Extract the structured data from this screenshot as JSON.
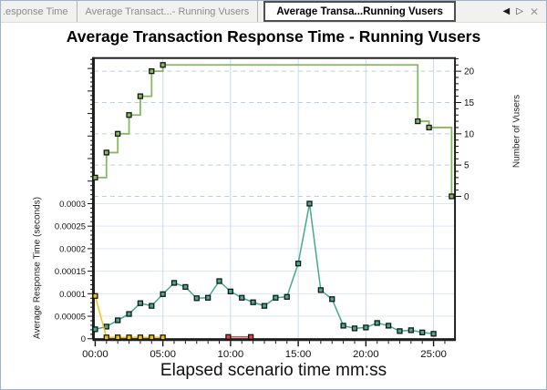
{
  "tab_bar": {
    "tabs": [
      {
        "label": ".esponse Time",
        "active": false
      },
      {
        "label": "Average Transact...- Running Vusers",
        "active": false
      },
      {
        "label": "Average Transa...Running Vusers",
        "active": true
      }
    ],
    "controls": {
      "prev": "◀",
      "next": "▷",
      "close": "✕"
    }
  },
  "chart_data": {
    "type": "line",
    "title": "Average Transaction Response Time - Running Vusers",
    "xlabel": "Elapsed scenario time mm:ss",
    "ylabel_left": "Average Response Time (seconds)",
    "ylabel_right": "Number of Vusers",
    "legend": "none",
    "grid": {
      "vertical": "solid",
      "horizontal_left_axis": "solid",
      "horizontal_right_axis": "dashed"
    },
    "axes": {
      "x": {
        "minor_step_s": 50,
        "max_s": 1595,
        "major_ticks": [
          {
            "t": 0,
            "label": "00:00"
          },
          {
            "t": 300,
            "label": "05:00"
          },
          {
            "t": 600,
            "label": "10:00"
          },
          {
            "t": 900,
            "label": "15:00"
          },
          {
            "t": 1200,
            "label": "20:00"
          },
          {
            "t": 1500,
            "label": "25:00"
          }
        ]
      },
      "y_left": {
        "minor_step": 1e-05,
        "range": [
          0,
          0.00062
        ],
        "ticks": [
          {
            "v": 0,
            "label": "0"
          },
          {
            "v": 5e-05,
            "label": "0.00005"
          },
          {
            "v": 0.0001,
            "label": "0.0001"
          },
          {
            "v": 0.00015,
            "label": "0.00015"
          },
          {
            "v": 0.0002,
            "label": "0.0002"
          },
          {
            "v": 0.00025,
            "label": "0.00025"
          },
          {
            "v": 0.0003,
            "label": "0.0003"
          }
        ]
      },
      "y_right": {
        "minor_step": 1,
        "range": [
          0,
          22
        ],
        "ticks": [
          {
            "v": 0,
            "label": "0"
          },
          {
            "v": 5,
            "label": "5"
          },
          {
            "v": 10,
            "label": "10"
          },
          {
            "v": 15,
            "label": "15"
          },
          {
            "v": 20,
            "label": "20"
          }
        ]
      }
    },
    "series": [
      {
        "name": "average-response-time",
        "axis": "left",
        "type": "line",
        "marker": "square",
        "color": "#45a98e",
        "points": [
          [
            0,
            2.1e-05
          ],
          [
            50,
            2.7e-05
          ],
          [
            100,
            4.1e-05
          ],
          [
            150,
            5.5e-05
          ],
          [
            200,
            7.9e-05
          ],
          [
            250,
            7.3e-05
          ],
          [
            300,
            9.9e-05
          ],
          [
            350,
            0.000124
          ],
          [
            400,
            0.000115
          ],
          [
            450,
            9e-05
          ],
          [
            500,
            9.1e-05
          ],
          [
            550,
            0.000128
          ],
          [
            600,
            0.000105
          ],
          [
            650,
            9.1e-05
          ],
          [
            700,
            8.1e-05
          ],
          [
            750,
            7.3e-05
          ],
          [
            800,
            9.1e-05
          ],
          [
            850,
            9.3e-05
          ],
          [
            900,
            0.000167
          ],
          [
            950,
            0.0003
          ],
          [
            1000,
            0.000108
          ],
          [
            1050,
            8.8e-05
          ],
          [
            1100,
            2.9e-05
          ],
          [
            1150,
            2.3e-05
          ],
          [
            1200,
            2.5e-05
          ],
          [
            1250,
            3.5e-05
          ],
          [
            1300,
            2.9e-05
          ],
          [
            1350,
            1.7e-05
          ],
          [
            1400,
            1.9e-05
          ],
          [
            1450,
            1.4e-05
          ],
          [
            1500,
            1.1e-05
          ]
        ]
      },
      {
        "name": "transaction-yellow",
        "axis": "left",
        "type": "line",
        "marker": "square",
        "color": "#f2c20d",
        "points": [
          [
            0,
            9.5e-05
          ],
          [
            50,
            3e-06
          ],
          [
            100,
            3e-06
          ],
          [
            150,
            3e-06
          ],
          [
            200,
            3e-06
          ],
          [
            250,
            3e-06
          ],
          [
            300,
            3e-06
          ]
        ]
      },
      {
        "name": "transaction-red",
        "axis": "left",
        "type": "line",
        "marker": "square",
        "color": "#e04343",
        "points": [
          [
            590,
            4e-06
          ],
          [
            690,
            4e-06
          ]
        ]
      },
      {
        "name": "running-vusers",
        "axis": "right",
        "type": "step",
        "marker": "square",
        "color": "#85b95e",
        "points": [
          [
            0,
            3
          ],
          [
            50,
            7
          ],
          [
            100,
            10
          ],
          [
            150,
            13
          ],
          [
            200,
            16
          ],
          [
            250,
            20
          ],
          [
            300,
            21
          ],
          [
            1430,
            12
          ],
          [
            1480,
            11
          ],
          [
            1580,
            0
          ]
        ]
      }
    ]
  }
}
